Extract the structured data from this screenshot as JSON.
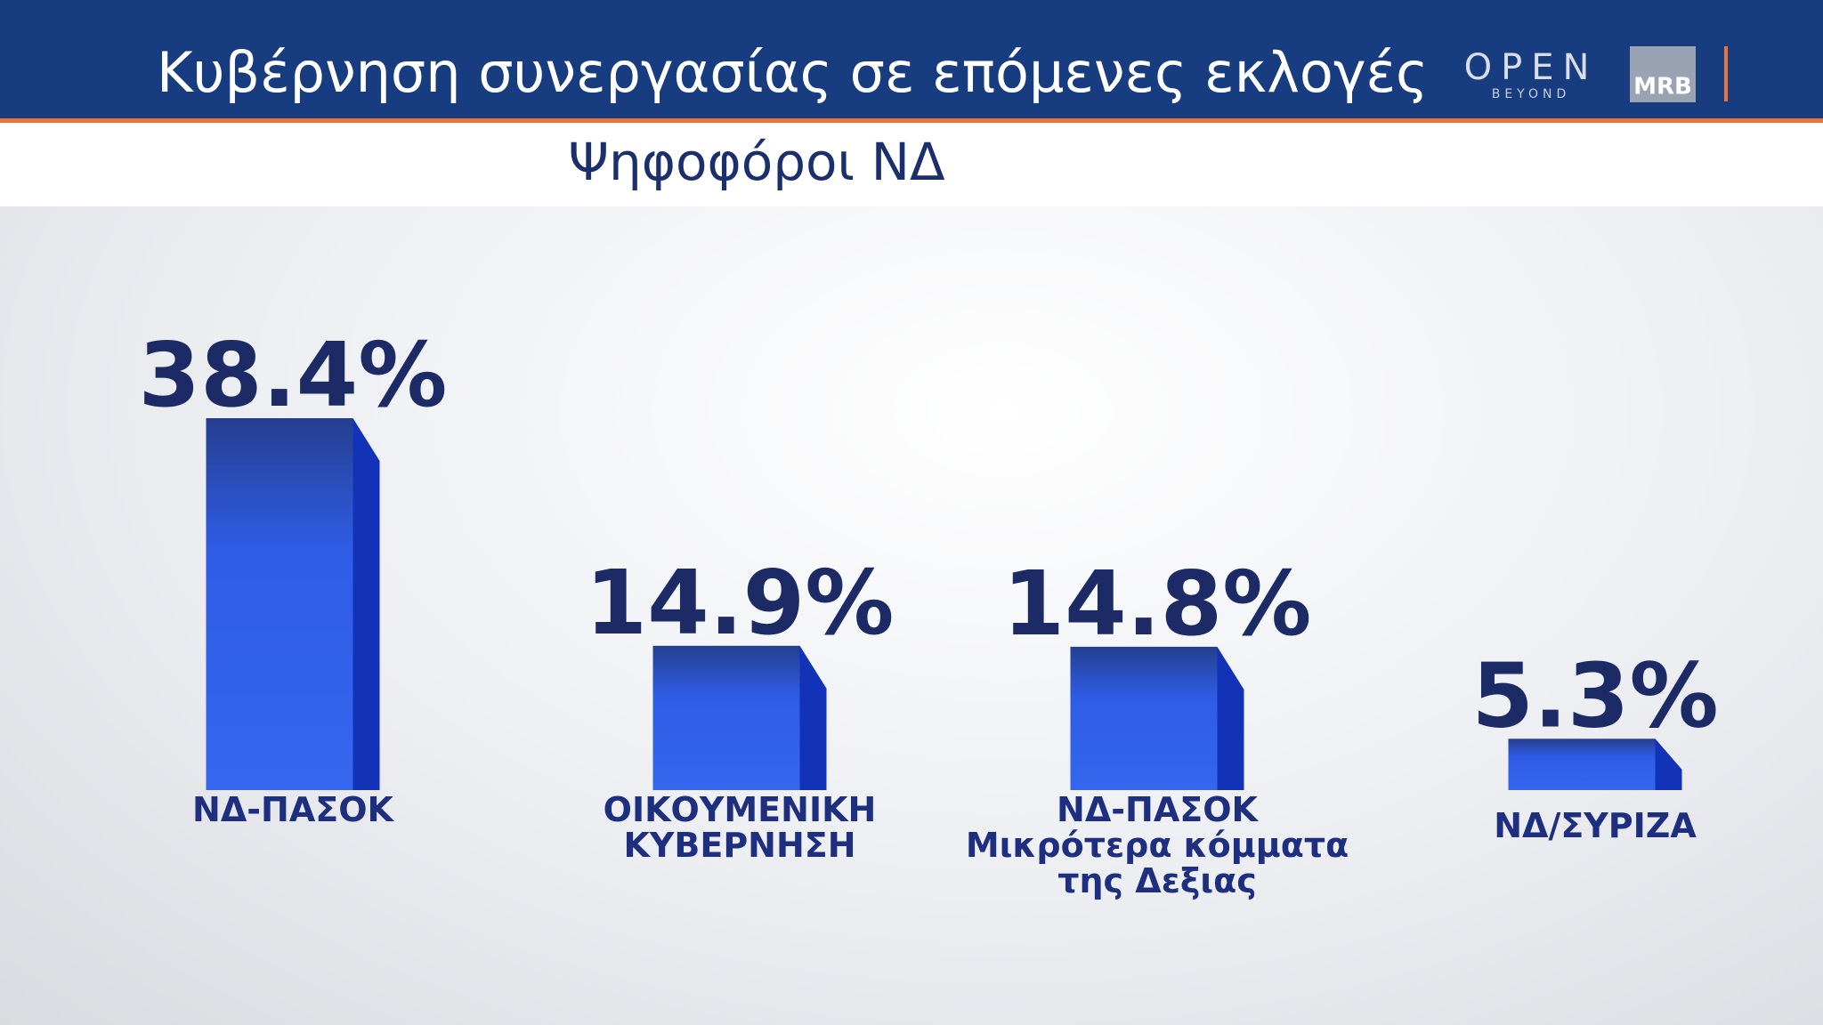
{
  "chart_data": {
    "type": "bar",
    "title": "Κυβέρνηση συνεργασίας σε επόμενες εκλογές",
    "subtitle": "Ψηφοφόροι ΝΔ",
    "categories": [
      "ΝΔ-ΠΑΣΟΚ",
      "ΟΙΚΟΥΜΕΝΙΚΗ\nΚΥΒΕΡΝΗΣΗ",
      "ΝΔ-ΠΑΣΟΚ\nΜικρότερα κόμματα\nτης Δεξιας",
      "ΝΔ/ΣΥΡΙΖΑ"
    ],
    "values": [
      38.4,
      14.9,
      14.8,
      5.3
    ],
    "value_labels": [
      "38.4%",
      "14.9%",
      "14.8%",
      "5.3%"
    ],
    "color": "#2f5ce6"
  },
  "logos": {
    "channel": "OPEN",
    "channel_sub": "BEYOND",
    "pollster": "MRB"
  }
}
